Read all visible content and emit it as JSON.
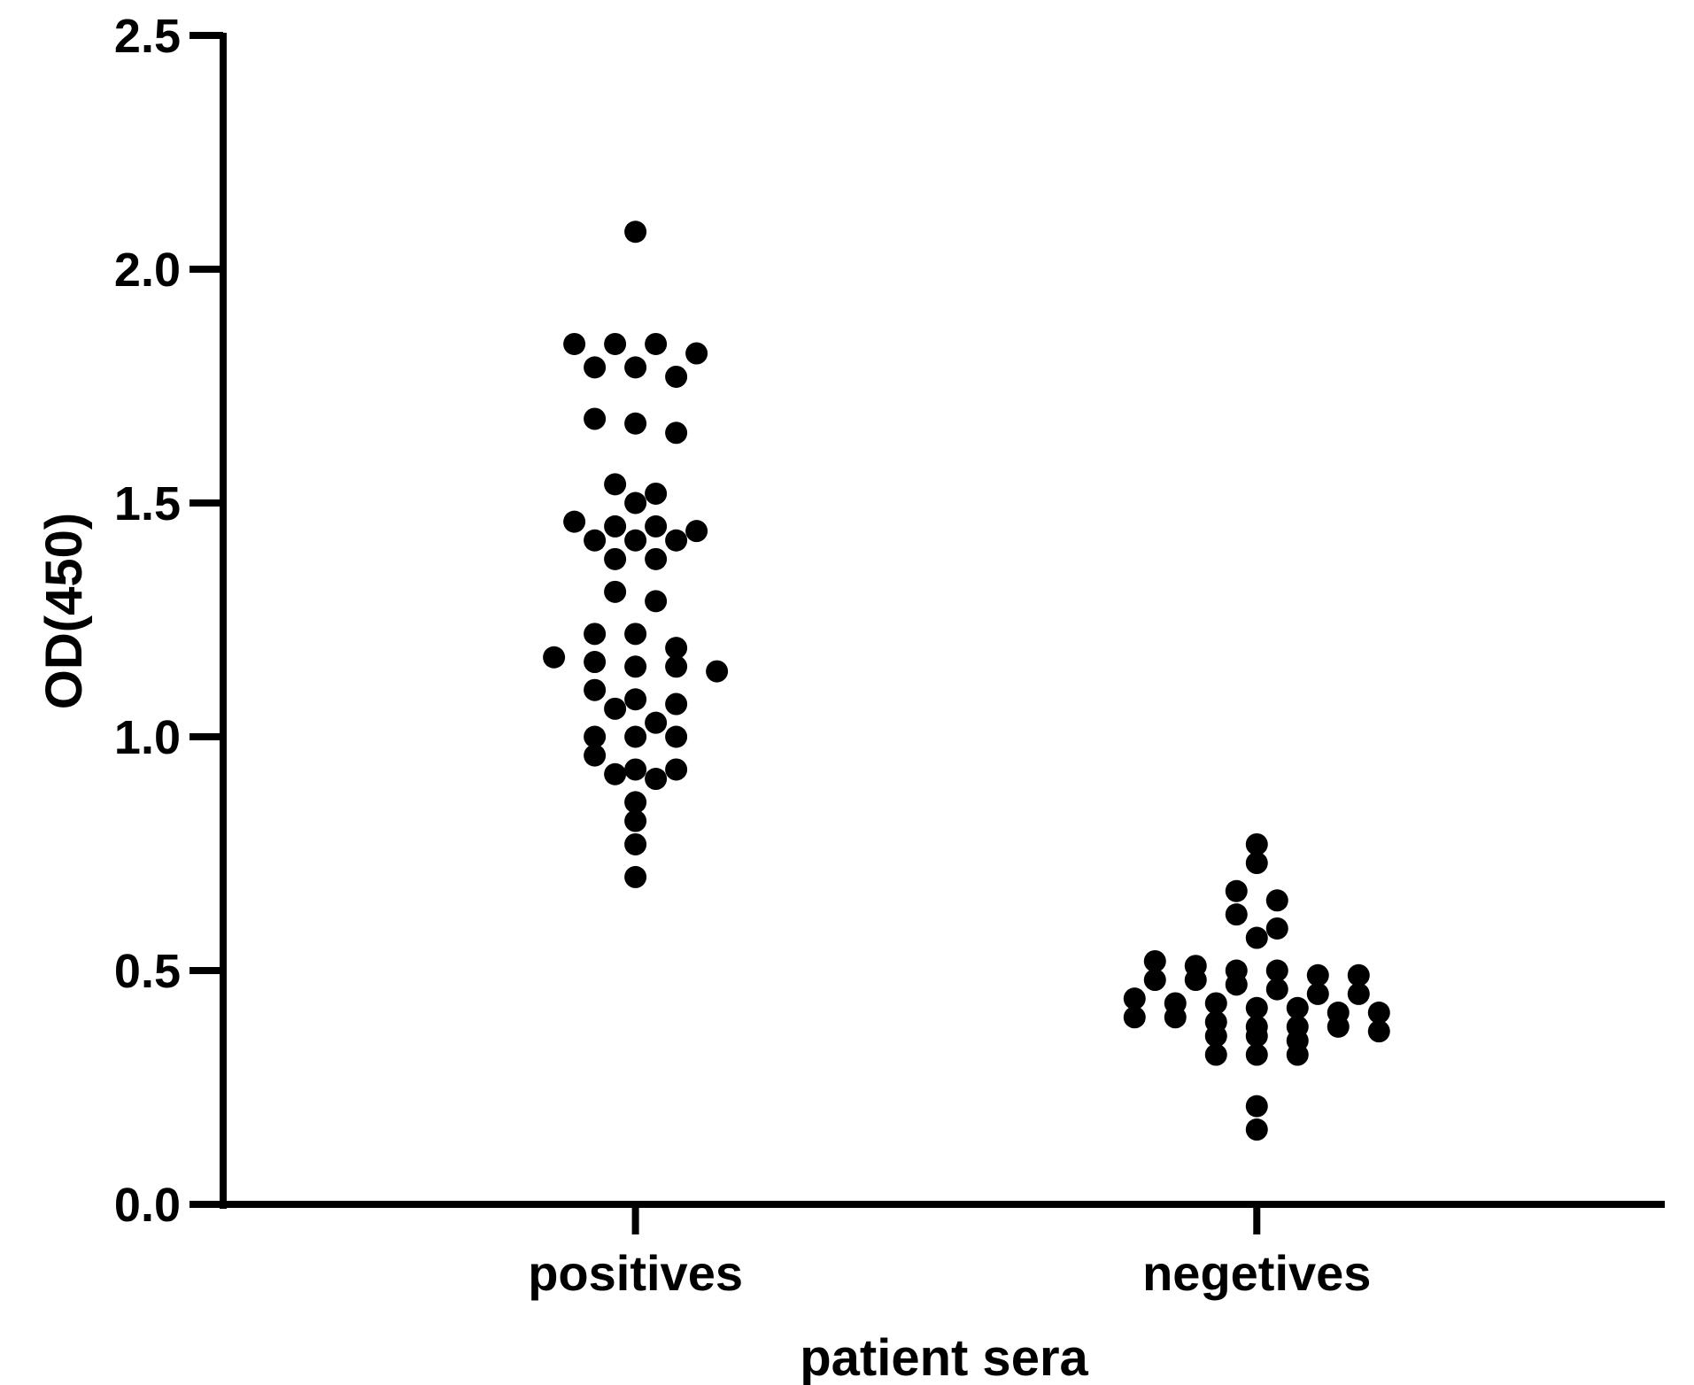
{
  "chart_data": {
    "type": "scatter",
    "subtype": "dot-plot",
    "title": "",
    "xlabel": "patient sera",
    "ylabel": "OD(450)",
    "ylim": [
      0,
      2.5
    ],
    "yticks": [
      "0.0",
      "0.5",
      "1.0",
      "1.5",
      "2.0",
      "2.5"
    ],
    "categories": [
      "positives",
      "negetives"
    ],
    "marker_color": "#000000",
    "series": [
      {
        "name": "positives",
        "values": [
          2.08,
          1.84,
          1.84,
          1.84,
          1.82,
          1.79,
          1.79,
          1.77,
          1.68,
          1.67,
          1.65,
          1.54,
          1.52,
          1.5,
          1.46,
          1.45,
          1.45,
          1.44,
          1.42,
          1.42,
          1.42,
          1.38,
          1.38,
          1.31,
          1.29,
          1.22,
          1.22,
          1.19,
          1.17,
          1.16,
          1.15,
          1.15,
          1.14,
          1.1,
          1.08,
          1.07,
          1.06,
          1.03,
          1.0,
          1.0,
          1.0,
          0.96,
          0.93,
          0.93,
          0.92,
          0.91,
          0.86,
          0.82,
          0.77,
          0.7
        ]
      },
      {
        "name": "negetives",
        "values": [
          0.77,
          0.73,
          0.67,
          0.65,
          0.62,
          0.59,
          0.57,
          0.52,
          0.51,
          0.5,
          0.5,
          0.49,
          0.49,
          0.48,
          0.48,
          0.47,
          0.46,
          0.45,
          0.45,
          0.44,
          0.43,
          0.43,
          0.42,
          0.42,
          0.41,
          0.41,
          0.4,
          0.4,
          0.39,
          0.38,
          0.38,
          0.38,
          0.37,
          0.36,
          0.36,
          0.35,
          0.32,
          0.32,
          0.32,
          0.21,
          0.16
        ]
      }
    ]
  }
}
